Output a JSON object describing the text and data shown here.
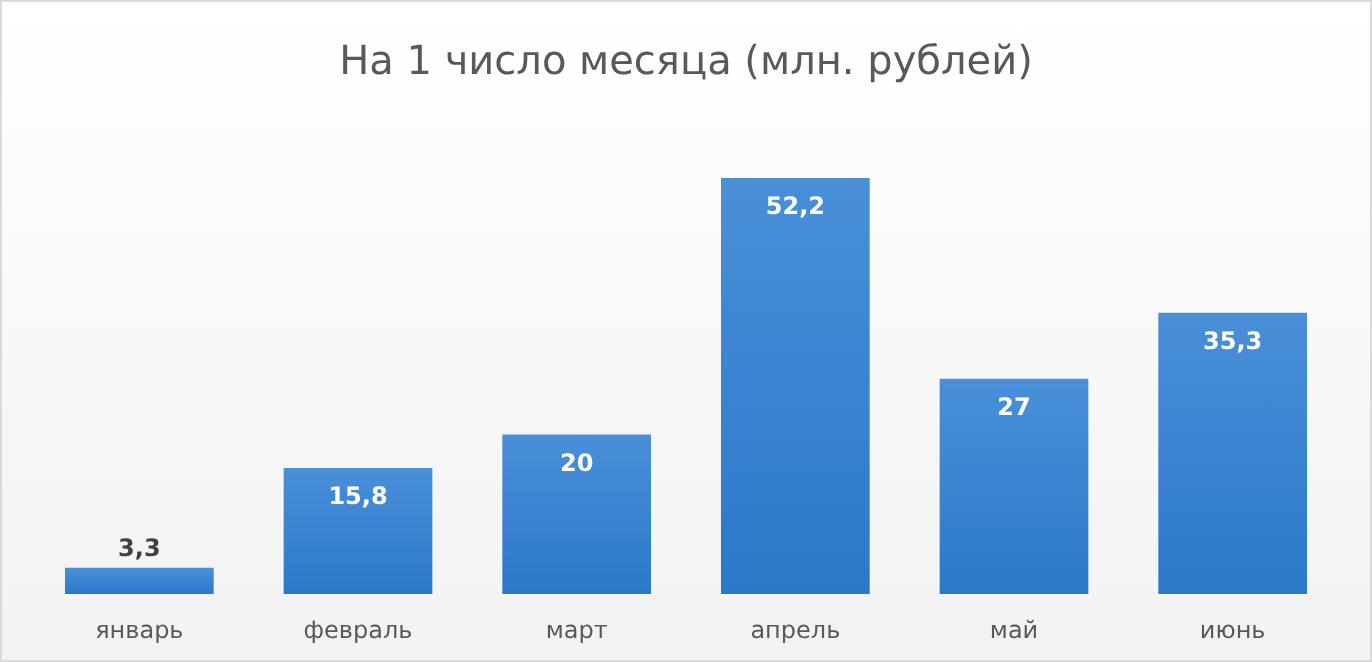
{
  "chart_data": {
    "type": "bar",
    "title": "На 1 число месяца (млн. рублей)",
    "categories": [
      "январь",
      "февраль",
      "март",
      "апрель",
      "май",
      "июнь"
    ],
    "values": [
      3.3,
      15.8,
      20,
      52.2,
      27,
      35.3
    ],
    "value_labels": [
      "3,3",
      "15,8",
      "20",
      "52,2",
      "27",
      "35,3"
    ],
    "color": "#4a8fd8"
  }
}
